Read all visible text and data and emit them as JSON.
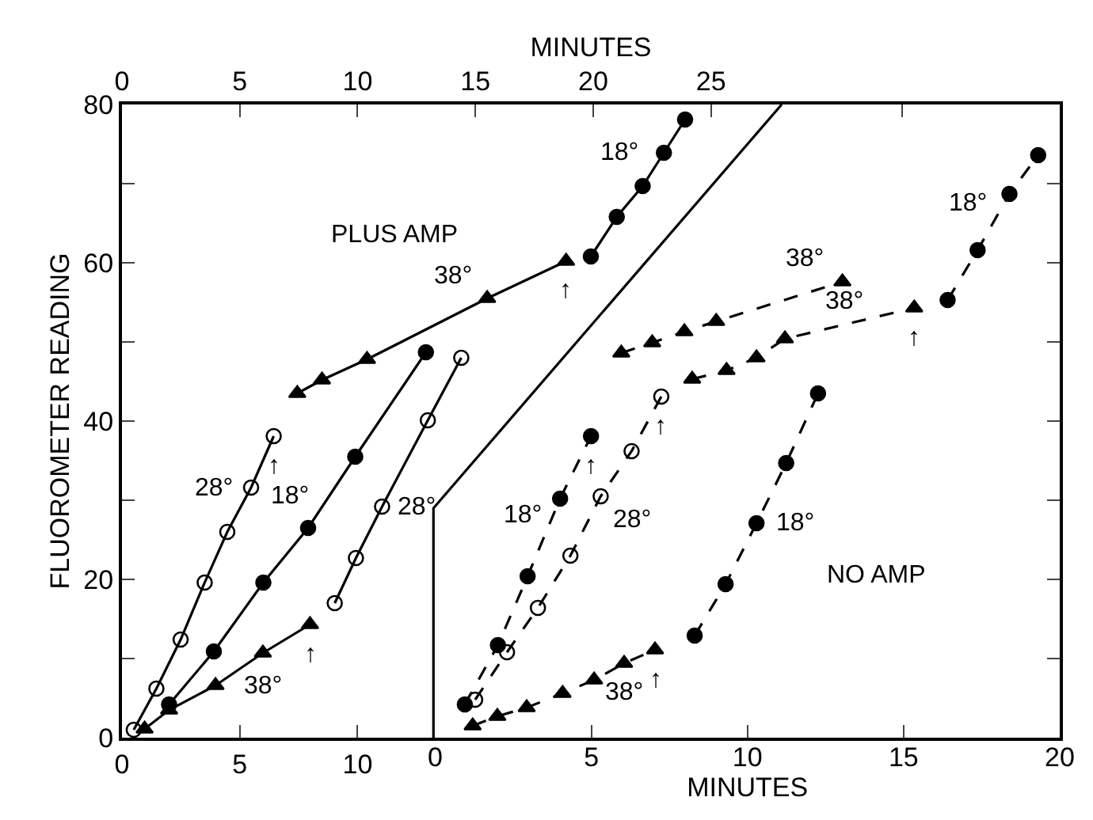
{
  "chart_data": [
    {
      "type": "line",
      "ylabel": "FLUOROMETER READING",
      "x2label": "MINUTES",
      "xlim": [
        0,
        39.8
      ],
      "xticks": [
        0,
        5,
        10
      ],
      "x2lim": [
        0,
        39.8
      ],
      "x2ticks": [
        0,
        5,
        10,
        15,
        20,
        25,
        {
          "value": 33.1,
          "label": null
        }
      ],
      "ylim": [
        0,
        80
      ],
      "yticks": [
        0,
        {
          "value": 10,
          "label": null
        },
        20,
        {
          "value": 30,
          "label": null
        },
        40,
        {
          "value": 50,
          "label": null
        },
        60,
        {
          "value": 70,
          "label": null
        },
        80
      ],
      "grid": false,
      "legend": false,
      "line_style": "solid",
      "series": [
        {
          "name": "28°",
          "axis": "x2",
          "color": "#000000",
          "marker": "circle-open",
          "x": [
            0.5,
            1.46,
            2.49,
            3.51,
            4.47,
            5.48,
            6.44
          ],
          "values": [
            1,
            6.2,
            12.4,
            19.6,
            26.0,
            31.6,
            38.1
          ]
        },
        {
          "name": "38°",
          "axis": "x2",
          "color": "#000000",
          "marker": "triangle",
          "x": [
            7.44,
            8.49,
            10.4,
            15.5,
            18.85
          ],
          "values": [
            43.5,
            45.2,
            47.8,
            55.5,
            60.2
          ]
        },
        {
          "name": "18°",
          "axis": "x2",
          "color": "#000000",
          "marker": "circle",
          "x": [
            19.9,
            21.0,
            22.1,
            23.0,
            23.9
          ],
          "values": [
            60.8,
            65.8,
            69.7,
            73.9,
            78.1
          ]
        },
        {
          "name": "18°",
          "color": "#000000",
          "marker": "circle",
          "x": [
            2.0,
            3.9,
            6.0,
            7.9,
            9.9,
            12.9
          ],
          "values": [
            4.2,
            10.9,
            19.6,
            26.5,
            35.5,
            48.7
          ]
        },
        {
          "name": "38°",
          "color": "#000000",
          "marker": "triangle",
          "x": [
            0.96,
            2.0,
            3.97,
            5.98,
            7.98
          ],
          "values": [
            1.1,
            3.5,
            6.6,
            10.7,
            14.3
          ]
        },
        {
          "name": "28°",
          "color": "#000000",
          "marker": "circle-open",
          "x": [
            9.03,
            9.93,
            11.04,
            12.98,
            14.4
          ],
          "values": [
            17.0,
            22.7,
            29.2,
            40.1,
            48.0
          ]
        },
        {
          "color": "#000000",
          "marker": "none",
          "x": [
            13.22,
            13.22,
            28.0
          ],
          "values": [
            0,
            29,
            80
          ]
        }
      ],
      "annotations": [
        "PLUS AMP",
        {
          "text": "↑",
          "x": 6.44,
          "y": 38.1
        },
        {
          "text": "↑",
          "x": 7.98,
          "y": 14.3
        },
        {
          "text": "↑",
          "x": 18.85,
          "y": 60.2
        }
      ]
    },
    {
      "type": "line",
      "xlabel": "MINUTES",
      "xlim": [
        0,
        20
      ],
      "xticks": [
        0,
        5,
        10,
        15,
        20
      ],
      "ylim": [
        0,
        80
      ],
      "yticks": [
        0,
        20,
        40,
        60,
        80
      ],
      "grid": false,
      "legend": false,
      "line_style": "dashed",
      "tick_labels": "x",
      "series": [
        {
          "name": "18°",
          "color": "#000000",
          "marker": "circle",
          "x": [
            0.95,
            2.01,
            2.96,
            4.0,
            4.99
          ],
          "values": [
            4.2,
            11.7,
            20.4,
            30.2,
            38.1
          ]
        },
        {
          "name": "38°",
          "color": "#000000",
          "marker": "triangle",
          "x": [
            5.96,
            6.95,
            7.98,
            9.0,
            13.04
          ],
          "values": [
            48.6,
            49.9,
            51.3,
            52.6,
            57.6
          ]
        },
        {
          "name": "28°",
          "color": "#000000",
          "marker": "circle-open",
          "x": [
            1.28,
            2.3,
            3.29,
            4.33,
            5.3,
            6.29,
            7.24
          ],
          "values": [
            4.8,
            10.8,
            16.4,
            23.0,
            30.5,
            36.2,
            43.1
          ]
        },
        {
          "name": "38°",
          "color": "#000000",
          "marker": "triangle",
          "x": [
            8.23,
            9.33,
            10.29,
            11.2,
            15.34
          ],
          "values": [
            45.3,
            46.4,
            48.0,
            50.4,
            54.3
          ]
        },
        {
          "name": "18°",
          "color": "#000000",
          "marker": "circle",
          "x": [
            16.41,
            17.37,
            18.39,
            19.31
          ],
          "values": [
            55.3,
            61.6,
            68.7,
            73.6
          ]
        },
        {
          "name": "38°",
          "color": "#000000",
          "marker": "triangle",
          "x": [
            1.2,
            1.99,
            2.93,
            4.08,
            5.09,
            6.05,
            7.04
          ],
          "values": [
            1.5,
            2.7,
            3.8,
            5.6,
            7.3,
            9.4,
            11.1
          ]
        },
        {
          "name": "18°",
          "color": "#000000",
          "marker": "circle",
          "x": [
            8.31,
            9.3,
            10.29,
            11.24,
            12.26
          ],
          "values": [
            12.9,
            19.4,
            27.1,
            34.7,
            43.5
          ]
        }
      ],
      "annotations": [
        "NO AMP",
        {
          "text": "↑",
          "x": 4.99,
          "y": 38.1
        },
        {
          "text": "↑",
          "x": 7.24,
          "y": 43.1
        },
        {
          "text": "↑",
          "x": 7.04,
          "y": 11.1
        },
        {
          "text": "↑",
          "x": 15.34,
          "y": 54.3
        }
      ]
    }
  ]
}
